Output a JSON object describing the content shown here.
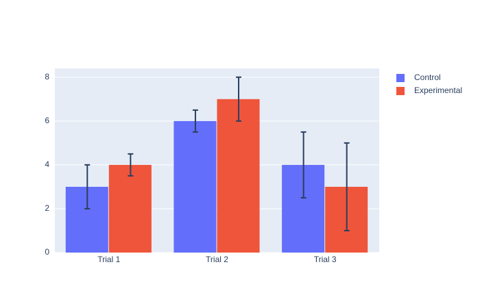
{
  "chart_data": {
    "type": "bar",
    "categories": [
      "Trial 1",
      "Trial 2",
      "Trial 3"
    ],
    "series": [
      {
        "name": "Control",
        "color": "#636efa",
        "values": [
          3,
          6,
          4
        ],
        "errors": [
          1,
          0.5,
          1.5
        ]
      },
      {
        "name": "Experimental",
        "color": "#ef553b",
        "values": [
          4,
          7,
          3
        ],
        "errors": [
          0.5,
          1,
          2
        ]
      }
    ],
    "ylim": [
      0,
      8.4
    ],
    "yticks": [
      0,
      2,
      4,
      6,
      8
    ],
    "grid": true,
    "legend": "right",
    "error_color": "#2a3f5f",
    "background": "#e5ecf6"
  }
}
